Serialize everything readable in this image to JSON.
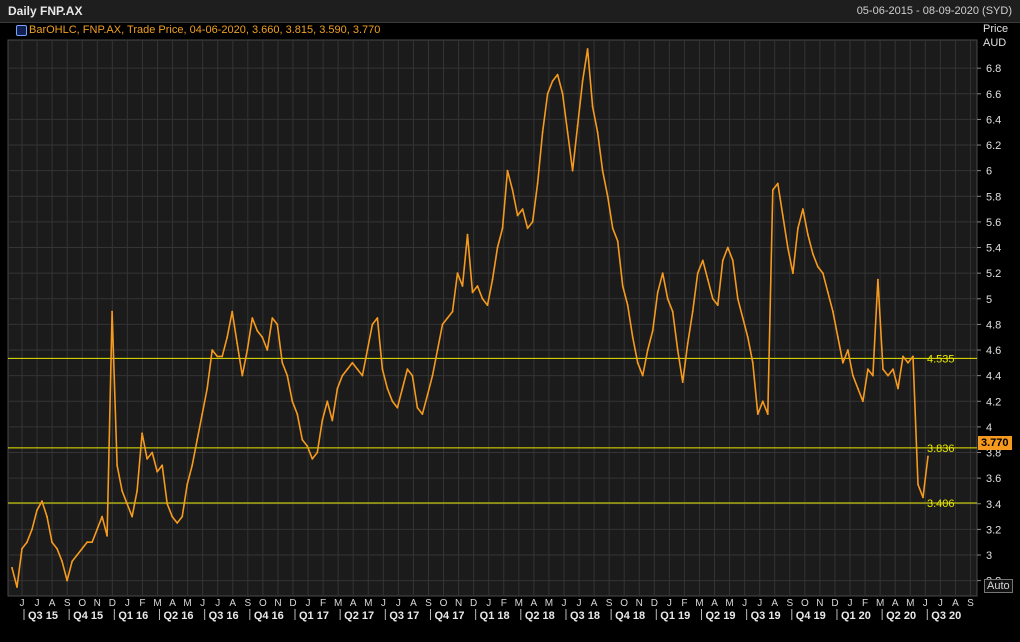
{
  "header": {
    "title": "Daily FNP.AX",
    "date_range": "05-06-2015 - 08-09-2020 (SYD)"
  },
  "legend": {
    "text": "BarOHLC, FNP.AX, Trade Price, 04-06-2020, 3.660, 3.815, 3.590, 3.770"
  },
  "axis": {
    "unit_line1": "Price",
    "unit_line2": "AUD",
    "auto_label": "Auto",
    "last_price": "3.770"
  },
  "colors": {
    "background": "#000000",
    "plot_background": "#1b1b1b",
    "grid": "#343434",
    "series": "#f59a1e",
    "hline": "#e8e800"
  },
  "chart_data": {
    "type": "line",
    "title": "Daily FNP.AX",
    "ylabel": "Price AUD",
    "ylim": [
      2.68,
      7.02
    ],
    "y_ticks": [
      2.8,
      3,
      3.2,
      3.4,
      3.6,
      3.8,
      4,
      4.2,
      4.4,
      4.6,
      4.8,
      5,
      5.2,
      5.4,
      5.6,
      5.8,
      6,
      6.2,
      6.4,
      6.6,
      6.8
    ],
    "y_tick_labels": [
      "2.8",
      "3",
      "3.2",
      "3.4",
      "3.6",
      "3.8",
      "4",
      "4.2",
      "4.4",
      "4.6",
      "4.8",
      "5",
      "5.2",
      "5.4",
      "5.6",
      "5.8",
      "6",
      "6.2",
      "6.4",
      "6.6",
      "6.8"
    ],
    "grid": true,
    "month_labels": [
      "J",
      "J",
      "A",
      "S",
      "O",
      "N",
      "D",
      "J",
      "F",
      "M",
      "A",
      "M",
      "J",
      "J",
      "A",
      "S",
      "O",
      "N",
      "D",
      "J",
      "F",
      "M",
      "A",
      "M",
      "J",
      "J",
      "A",
      "S",
      "O",
      "N",
      "D",
      "J",
      "F",
      "M",
      "A",
      "M",
      "J",
      "J",
      "A",
      "S",
      "O",
      "N",
      "D",
      "J",
      "F",
      "M",
      "A",
      "M",
      "J",
      "J",
      "A",
      "S",
      "O",
      "N",
      "D",
      "J",
      "F",
      "M",
      "A",
      "M",
      "J",
      "J",
      "A",
      "S"
    ],
    "quarter_labels": [
      "Q3 15",
      "Q4 15",
      "Q1 16",
      "Q2 16",
      "Q3 16",
      "Q4 16",
      "Q1 17",
      "Q2 17",
      "Q3 17",
      "Q4 17",
      "Q1 18",
      "Q2 18",
      "Q3 18",
      "Q4 18",
      "Q1 19",
      "Q2 19",
      "Q3 19",
      "Q4 19",
      "Q1 20",
      "Q2 20",
      "Q3 20"
    ],
    "hlines": [
      {
        "value": 4.535,
        "label": "4.535"
      },
      {
        "value": 3.836,
        "label": "3.836"
      },
      {
        "value": 3.406,
        "label": "3.406"
      }
    ],
    "series": [
      {
        "values": [
          2.9,
          2.75,
          3.05,
          3.1,
          3.2,
          3.35,
          3.42,
          3.3,
          3.1,
          3.05,
          2.95,
          2.8,
          2.95,
          3.0,
          3.05,
          3.1,
          3.1,
          3.2,
          3.3,
          3.15,
          4.9,
          3.7,
          3.5,
          3.4,
          3.3,
          3.5,
          3.95,
          3.75,
          3.8,
          3.65,
          3.7,
          3.4,
          3.3,
          3.25,
          3.3,
          3.55,
          3.7,
          3.9,
          4.1,
          4.3,
          4.6,
          4.55,
          4.55,
          4.7,
          4.9,
          4.65,
          4.4,
          4.6,
          4.85,
          4.75,
          4.7,
          4.6,
          4.85,
          4.8,
          4.5,
          4.4,
          4.2,
          4.1,
          3.9,
          3.85,
          3.75,
          3.8,
          4.05,
          4.2,
          4.05,
          4.3,
          4.4,
          4.45,
          4.5,
          4.45,
          4.4,
          4.6,
          4.8,
          4.85,
          4.45,
          4.3,
          4.2,
          4.15,
          4.3,
          4.45,
          4.4,
          4.15,
          4.1,
          4.25,
          4.4,
          4.6,
          4.8,
          4.85,
          4.9,
          5.2,
          5.1,
          5.5,
          5.05,
          5.1,
          5.0,
          4.95,
          5.15,
          5.4,
          5.55,
          6.0,
          5.85,
          5.65,
          5.7,
          5.55,
          5.6,
          5.9,
          6.3,
          6.6,
          6.7,
          6.75,
          6.6,
          6.3,
          6.0,
          6.35,
          6.7,
          6.95,
          6.5,
          6.3,
          6.0,
          5.8,
          5.55,
          5.45,
          5.1,
          4.95,
          4.7,
          4.5,
          4.4,
          4.6,
          4.75,
          5.05,
          5.2,
          5.0,
          4.9,
          4.6,
          4.35,
          4.65,
          4.9,
          5.2,
          5.3,
          5.15,
          5.0,
          4.95,
          5.3,
          5.4,
          5.3,
          5.0,
          4.85,
          4.7,
          4.5,
          4.1,
          4.2,
          4.1,
          5.85,
          5.9,
          5.65,
          5.4,
          5.2,
          5.55,
          5.7,
          5.5,
          5.35,
          5.25,
          5.2,
          5.05,
          4.9,
          4.7,
          4.5,
          4.6,
          4.4,
          4.3,
          4.2,
          4.45,
          4.4,
          5.15,
          4.45,
          4.4,
          4.45,
          4.3,
          4.55,
          4.5,
          4.55,
          3.55,
          3.45,
          3.77
        ]
      }
    ]
  }
}
